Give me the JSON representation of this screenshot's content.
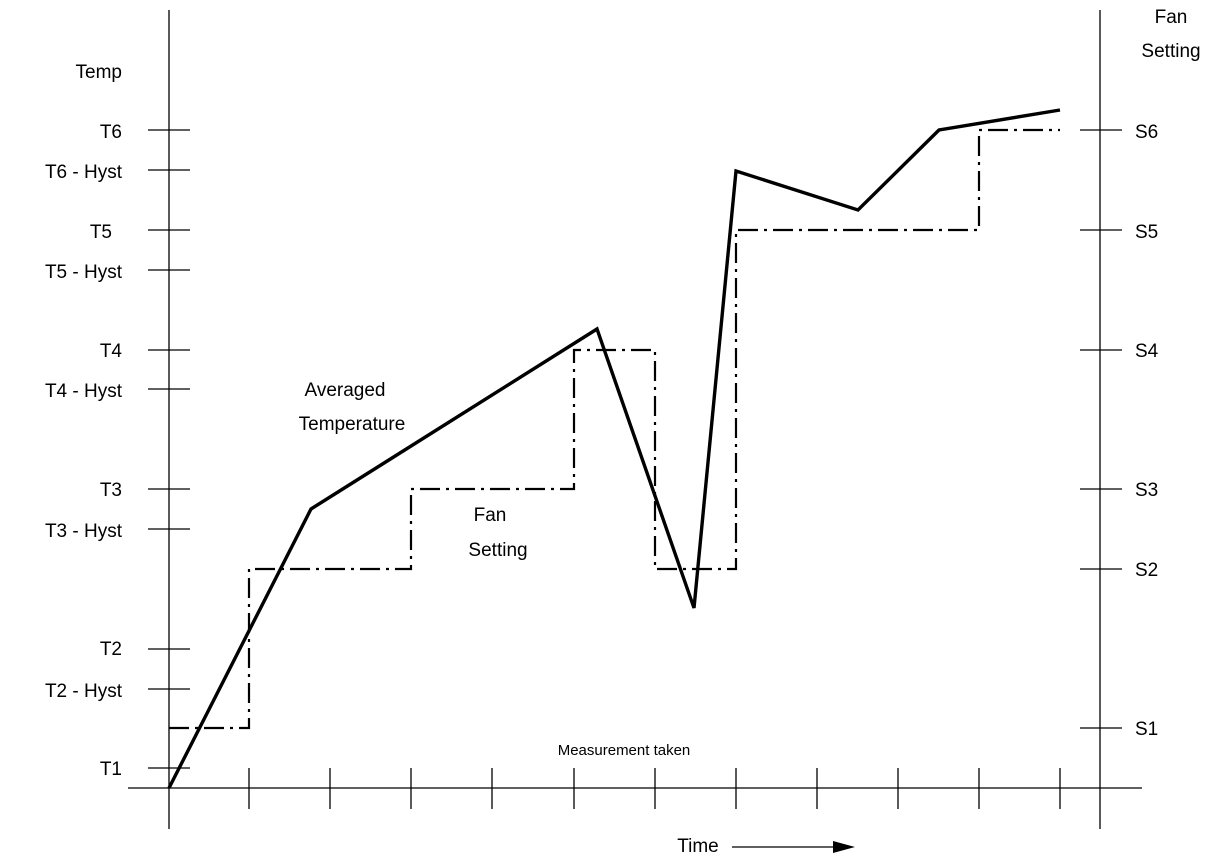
{
  "left_axis": {
    "title": "Temp",
    "ticks": [
      "T1",
      "T2 - Hyst",
      "T2",
      "T3 - Hyst",
      "T3",
      "T4 - Hyst",
      "T4",
      "T5 - Hyst",
      "T5",
      "T6 - Hyst",
      "T6"
    ]
  },
  "right_axis": {
    "title_line1": "Fan",
    "title_line2": "Setting",
    "ticks": [
      "S1",
      "S2",
      "S3",
      "S4",
      "S5",
      "S6"
    ]
  },
  "x_axis": {
    "label": "Time",
    "tick_count": 12,
    "marker_label": "Measurement taken"
  },
  "annotations": {
    "temp_curve_line1": "Averaged",
    "temp_curve_line2": "Temperature",
    "fan_curve_line1": "Fan",
    "fan_curve_line2": "Setting"
  },
  "chart_data": {
    "type": "line",
    "x": [
      0,
      1,
      2,
      3,
      4,
      5,
      6,
      7,
      8,
      9,
      10,
      11
    ],
    "series": [
      {
        "name": "Averaged Temperature",
        "style": "solid",
        "points": [
          [
            0,
            "T1"
          ],
          [
            1,
            "T2 - Hyst"
          ],
          [
            1.77,
            "T3 - Hyst"
          ],
          [
            5.27,
            "T4"
          ],
          [
            6.5,
            "S2"
          ],
          [
            7,
            "T6 - Hyst"
          ],
          [
            8.5,
            "T5 - Hyst"
          ],
          [
            9.5,
            "T6"
          ],
          [
            11,
            "above T6"
          ]
        ]
      },
      {
        "name": "Fan Setting",
        "style": "dash-dot",
        "steps": [
          [
            0,
            1,
            "S1"
          ],
          [
            1,
            3,
            "S2"
          ],
          [
            3,
            5,
            "S3"
          ],
          [
            5,
            6,
            "S4"
          ],
          [
            6,
            7,
            "S2"
          ],
          [
            7,
            10,
            "S5"
          ],
          [
            10,
            11,
            "S6"
          ]
        ]
      }
    ]
  }
}
